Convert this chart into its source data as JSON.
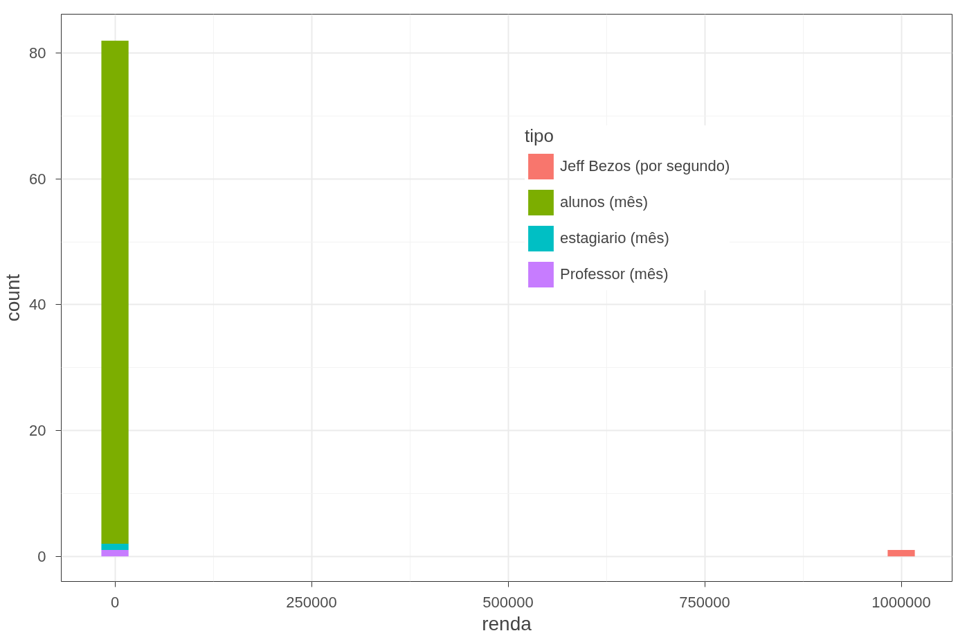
{
  "chart_data": {
    "type": "bar",
    "stacked": true,
    "xlabel": "renda",
    "ylabel": "count",
    "legend_title": "tipo",
    "legend": "top right",
    "grid": true,
    "x": [
      0,
      1000000
    ],
    "series": [
      {
        "name": "Professor (mês)",
        "color": "#c77cff",
        "values": [
          1,
          0
        ]
      },
      {
        "name": "estagiario (mês)",
        "color": "#00bfc4",
        "values": [
          1,
          0
        ]
      },
      {
        "name": "alunos (mês)",
        "color": "#7cae00",
        "values": [
          80,
          0
        ]
      },
      {
        "name": "Jeff Bezos (por segundo)",
        "color": "#f8766d",
        "values": [
          0,
          1
        ]
      }
    ],
    "xlim": [
      -68300,
      1064700
    ],
    "ylim": [
      -4,
      86.2
    ],
    "xticks": [
      {
        "value": 0,
        "label": "0"
      },
      {
        "value": 125000,
        "label": null
      },
      {
        "value": 250000,
        "label": "250000"
      },
      {
        "value": 375000,
        "label": null
      },
      {
        "value": 500000,
        "label": "500000"
      },
      {
        "value": 625000,
        "label": null
      },
      {
        "value": 750000,
        "label": "750000"
      },
      {
        "value": 875000,
        "label": null
      },
      {
        "value": 1000000,
        "label": "1000000"
      }
    ],
    "yticks": [
      0,
      {
        "value": 10,
        "label": null
      },
      20,
      {
        "value": 30,
        "label": null
      },
      40,
      {
        "value": 50,
        "label": null
      },
      60,
      {
        "value": 70,
        "label": null
      },
      80
    ]
  }
}
